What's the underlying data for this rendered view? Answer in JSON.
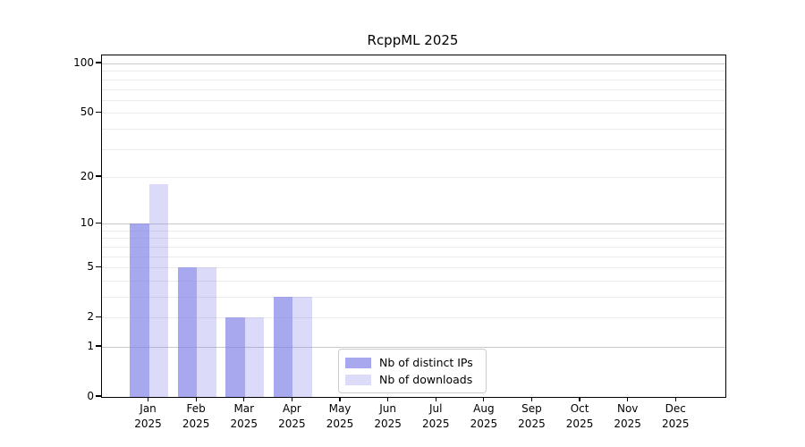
{
  "title": "RcppML 2025",
  "chart_data": {
    "type": "bar",
    "title": "RcppML 2025",
    "x_categories": [
      {
        "month": "Jan",
        "year": "2025"
      },
      {
        "month": "Feb",
        "year": "2025"
      },
      {
        "month": "Mar",
        "year": "2025"
      },
      {
        "month": "Apr",
        "year": "2025"
      },
      {
        "month": "May",
        "year": "2025"
      },
      {
        "month": "Jun",
        "year": "2025"
      },
      {
        "month": "Jul",
        "year": "2025"
      },
      {
        "month": "Aug",
        "year": "2025"
      },
      {
        "month": "Sep",
        "year": "2025"
      },
      {
        "month": "Oct",
        "year": "2025"
      },
      {
        "month": "Nov",
        "year": "2025"
      },
      {
        "month": "Dec",
        "year": "2025"
      }
    ],
    "series": [
      {
        "name": "Nb of distinct IPs",
        "bar_color": "rgba(127,127,232,0.68)",
        "swatch_color": "#a8a8ef",
        "values": [
          10,
          5,
          2,
          3,
          0,
          0,
          0,
          0,
          0,
          0,
          0,
          0
        ]
      },
      {
        "name": "Nb of downloads",
        "bar_color": "rgba(127,127,232,0.28)",
        "swatch_color": "#dcdcf8",
        "values": [
          18,
          5,
          2,
          3,
          0,
          0,
          0,
          0,
          0,
          0,
          0,
          0
        ]
      }
    ],
    "yscale": "log1p",
    "ymax": 112,
    "yticks": [
      0,
      1,
      2,
      5,
      10,
      20,
      50,
      100
    ],
    "major_gridlines": [
      1,
      10,
      100
    ],
    "minor_gridlines": [
      2,
      3,
      4,
      5,
      6,
      7,
      8,
      9,
      20,
      30,
      40,
      50,
      60,
      70,
      80,
      90
    ],
    "grid": "horizontal",
    "legend_position": "inside-bottom-center"
  },
  "colors": {
    "background": "#ffffff",
    "spine": "#000000",
    "text": "#000000",
    "major_grid": "#c9c9c9",
    "minor_grid": "#ebebeb",
    "legend_border": "#cccccc"
  }
}
